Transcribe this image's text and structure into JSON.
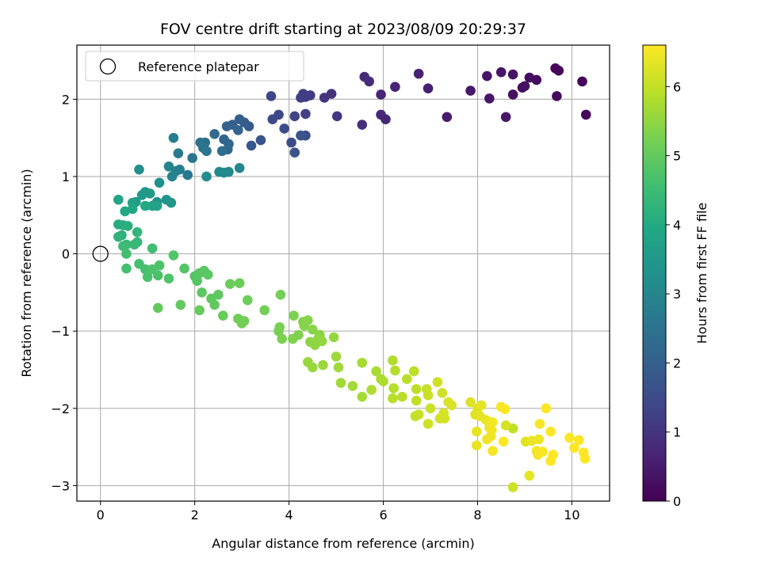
{
  "chart_data": {
    "type": "scatter",
    "title": "FOV centre drift starting at 2023/08/09 20:29:37",
    "xlabel": "Angular distance from reference (arcmin)",
    "ylabel": "Rotation from reference (arcmin)",
    "xlim": [
      -0.5,
      10.8
    ],
    "ylim": [
      -3.2,
      2.7
    ],
    "xticks": [
      0,
      2,
      4,
      6,
      8,
      10
    ],
    "yticks": [
      -3,
      -2,
      -1,
      0,
      1,
      2
    ],
    "grid": true,
    "legend": {
      "position": "top-left",
      "entries": [
        "Reference platepar"
      ]
    },
    "reference_point": {
      "x": 0,
      "y": 0
    },
    "colormap": "viridis",
    "colorbar": {
      "label": "Hours from first FF file",
      "range": [
        0,
        6.6
      ],
      "ticks": [
        0,
        1,
        2,
        3,
        4,
        5,
        6
      ]
    },
    "series": [
      {
        "values": [
          [
            9.65,
            2.4,
            0.08
          ],
          [
            9.72,
            2.37,
            0.1
          ],
          [
            10.22,
            2.23,
            0.12
          ],
          [
            10.3,
            1.8,
            0.14
          ],
          [
            9.68,
            2.04,
            0.16
          ],
          [
            9.25,
            2.25,
            0.2
          ],
          [
            9.1,
            2.28,
            0.22
          ],
          [
            8.95,
            2.15,
            0.25
          ],
          [
            9.0,
            2.17,
            0.27
          ],
          [
            8.75,
            2.06,
            0.3
          ],
          [
            8.75,
            2.32,
            0.32
          ],
          [
            8.5,
            2.35,
            0.35
          ],
          [
            8.2,
            2.3,
            0.38
          ],
          [
            8.25,
            2.01,
            0.4
          ],
          [
            8.6,
            1.77,
            0.42
          ],
          [
            7.85,
            2.11,
            0.46
          ],
          [
            7.35,
            1.77,
            0.5
          ],
          [
            6.95,
            2.14,
            0.55
          ],
          [
            6.75,
            2.33,
            0.6
          ],
          [
            6.25,
            2.16,
            0.65
          ],
          [
            5.95,
            2.06,
            0.7
          ],
          [
            6.05,
            1.74,
            0.72
          ],
          [
            5.95,
            1.8,
            0.75
          ],
          [
            5.6,
            2.29,
            0.8
          ],
          [
            5.7,
            2.23,
            0.85
          ],
          [
            5.55,
            1.67,
            0.9
          ],
          [
            4.9,
            2.07,
            0.95
          ],
          [
            4.75,
            2.02,
            1.0
          ],
          [
            5.02,
            1.78,
            1.05
          ],
          [
            4.45,
            2.05,
            1.1
          ],
          [
            4.3,
            2.07,
            1.15
          ],
          [
            4.35,
            2.03,
            1.18
          ],
          [
            4.25,
            2.02,
            1.2
          ],
          [
            4.35,
            1.81,
            1.25
          ],
          [
            4.12,
            1.78,
            1.3
          ],
          [
            3.62,
            2.04,
            1.35
          ],
          [
            3.78,
            1.8,
            1.4
          ],
          [
            3.65,
            1.74,
            1.45
          ],
          [
            3.9,
            1.62,
            1.5
          ],
          [
            4.05,
            1.44,
            1.55
          ],
          [
            4.35,
            1.53,
            1.6
          ],
          [
            4.25,
            1.53,
            1.65
          ],
          [
            4.12,
            1.31,
            1.7
          ],
          [
            3.4,
            1.47,
            1.75
          ],
          [
            3.2,
            1.4,
            1.8
          ],
          [
            3.15,
            1.65,
            1.85
          ],
          [
            3.05,
            1.7,
            1.9
          ],
          [
            2.95,
            1.74,
            1.95
          ],
          [
            2.8,
            1.67,
            2.0
          ],
          [
            2.68,
            1.65,
            2.05
          ],
          [
            2.92,
            1.6,
            2.1
          ],
          [
            2.62,
            1.48,
            2.15
          ],
          [
            2.72,
            1.42,
            2.2
          ],
          [
            2.7,
            1.35,
            2.25
          ],
          [
            2.42,
            1.55,
            2.3
          ],
          [
            2.58,
            1.33,
            2.35
          ],
          [
            2.22,
            1.44,
            2.4
          ],
          [
            2.18,
            1.37,
            2.45
          ],
          [
            2.12,
            1.44,
            2.5
          ],
          [
            2.25,
            1.33,
            2.55
          ],
          [
            1.95,
            1.24,
            2.6
          ],
          [
            1.85,
            1.02,
            2.65
          ],
          [
            1.65,
            1.3,
            2.7
          ],
          [
            1.55,
            1.5,
            2.75
          ],
          [
            1.68,
            1.09,
            2.8
          ],
          [
            1.6,
            1.07,
            2.85
          ],
          [
            1.52,
            1.0,
            2.9
          ],
          [
            1.45,
            1.13,
            2.95
          ],
          [
            2.95,
            1.11,
            3.0
          ],
          [
            2.72,
            1.06,
            3.05
          ],
          [
            2.62,
            1.05,
            3.1
          ],
          [
            2.52,
            1.06,
            3.15
          ],
          [
            2.25,
            1.0,
            3.2
          ],
          [
            0.82,
            1.09,
            3.25
          ],
          [
            1.25,
            0.92,
            3.3
          ],
          [
            1.2,
            0.67,
            3.35
          ],
          [
            1.4,
            0.7,
            3.4
          ],
          [
            1.5,
            0.66,
            3.45
          ],
          [
            0.95,
            0.8,
            3.5
          ],
          [
            0.88,
            0.76,
            3.55
          ],
          [
            1.05,
            0.78,
            3.6
          ],
          [
            0.75,
            0.67,
            3.65
          ],
          [
            0.68,
            0.66,
            3.7
          ],
          [
            1.1,
            0.62,
            3.75
          ],
          [
            1.2,
            0.62,
            3.8
          ],
          [
            0.38,
            0.7,
            3.85
          ],
          [
            0.68,
            0.58,
            3.9
          ],
          [
            0.52,
            0.55,
            3.95
          ],
          [
            0.95,
            0.62,
            4.0
          ],
          [
            0.38,
            0.38,
            4.05
          ],
          [
            0.48,
            0.37,
            4.1
          ],
          [
            0.58,
            0.36,
            4.15
          ],
          [
            0.45,
            0.24,
            4.2
          ],
          [
            0.38,
            0.22,
            4.25
          ],
          [
            0.78,
            0.28,
            4.3
          ],
          [
            0.78,
            0.15,
            4.35
          ],
          [
            0.72,
            0.12,
            4.4
          ],
          [
            0.55,
            0.12,
            4.45
          ],
          [
            0.48,
            0.1,
            4.5
          ],
          [
            1.1,
            0.07,
            4.55
          ],
          [
            0.55,
            0.0,
            4.6
          ],
          [
            0.55,
            -0.19,
            4.62
          ],
          [
            0.82,
            -0.13,
            4.64
          ],
          [
            0.95,
            -0.2,
            4.66
          ],
          [
            1.0,
            -0.3,
            4.68
          ],
          [
            1.22,
            -0.28,
            4.7
          ],
          [
            1.1,
            -0.2,
            4.72
          ],
          [
            1.25,
            -0.15,
            4.74
          ],
          [
            1.45,
            -0.32,
            4.76
          ],
          [
            1.55,
            -0.02,
            4.78
          ],
          [
            1.78,
            -0.19,
            4.8
          ],
          [
            2.0,
            -0.29,
            4.82
          ],
          [
            2.05,
            -0.35,
            4.84
          ],
          [
            2.1,
            -0.25,
            4.86
          ],
          [
            2.2,
            -0.22,
            4.88
          ],
          [
            2.28,
            -0.27,
            4.9
          ],
          [
            2.15,
            -0.5,
            4.92
          ],
          [
            2.35,
            -0.58,
            4.94
          ],
          [
            2.5,
            -0.53,
            4.96
          ],
          [
            2.42,
            -0.66,
            4.98
          ],
          [
            1.22,
            -0.7,
            5.0
          ],
          [
            1.7,
            -0.66,
            5.02
          ],
          [
            2.1,
            -0.73,
            5.04
          ],
          [
            2.6,
            -0.8,
            5.06
          ],
          [
            2.75,
            -0.39,
            5.08
          ],
          [
            2.95,
            -0.38,
            5.1
          ],
          [
            3.12,
            -0.6,
            5.12
          ],
          [
            2.92,
            -0.84,
            5.14
          ],
          [
            3.0,
            -0.9,
            5.16
          ],
          [
            3.05,
            -0.87,
            5.18
          ],
          [
            3.48,
            -0.73,
            5.2
          ],
          [
            3.82,
            -0.53,
            5.22
          ],
          [
            3.8,
            -0.95,
            5.24
          ],
          [
            3.78,
            -1.0,
            5.26
          ],
          [
            3.85,
            -1.1,
            5.28
          ],
          [
            4.1,
            -0.8,
            5.3
          ],
          [
            4.08,
            -1.1,
            5.32
          ],
          [
            4.2,
            -1.05,
            5.34
          ],
          [
            4.3,
            -0.88,
            5.36
          ],
          [
            4.32,
            -0.93,
            5.38
          ],
          [
            4.4,
            -0.86,
            5.4
          ],
          [
            4.5,
            -0.98,
            5.42
          ],
          [
            4.65,
            -1.05,
            5.44
          ],
          [
            4.45,
            -1.14,
            5.46
          ],
          [
            4.55,
            -1.18,
            5.48
          ],
          [
            4.62,
            -1.1,
            5.5
          ],
          [
            4.7,
            -1.13,
            5.52
          ],
          [
            4.95,
            -1.08,
            5.54
          ],
          [
            4.4,
            -1.4,
            5.56
          ],
          [
            4.5,
            -1.47,
            5.58
          ],
          [
            4.72,
            -1.44,
            5.6
          ],
          [
            5.0,
            -1.33,
            5.62
          ],
          [
            5.05,
            -1.47,
            5.64
          ],
          [
            5.1,
            -1.67,
            5.66
          ],
          [
            5.35,
            -1.71,
            5.68
          ],
          [
            5.55,
            -1.85,
            5.7
          ],
          [
            5.55,
            -1.41,
            5.72
          ],
          [
            5.85,
            -1.52,
            5.74
          ],
          [
            5.95,
            -1.62,
            5.76
          ],
          [
            6.0,
            -1.65,
            5.78
          ],
          [
            5.75,
            -1.76,
            5.8
          ],
          [
            6.2,
            -1.38,
            5.82
          ],
          [
            6.25,
            -1.51,
            5.84
          ],
          [
            6.22,
            -1.74,
            5.86
          ],
          [
            6.2,
            -1.87,
            5.88
          ],
          [
            6.4,
            -1.85,
            5.9
          ],
          [
            6.5,
            -1.62,
            5.92
          ],
          [
            6.65,
            -1.52,
            5.94
          ],
          [
            6.7,
            -1.75,
            5.96
          ],
          [
            6.7,
            -1.9,
            5.98
          ],
          [
            6.68,
            -2.1,
            6.0
          ],
          [
            6.75,
            -2.08,
            6.02
          ],
          [
            6.92,
            -1.75,
            6.04
          ],
          [
            6.95,
            -1.83,
            6.06
          ],
          [
            7.0,
            -2.0,
            6.08
          ],
          [
            6.95,
            -2.2,
            6.1
          ],
          [
            7.15,
            -1.66,
            6.12
          ],
          [
            7.25,
            -1.8,
            6.14
          ],
          [
            7.2,
            -2.13,
            6.16
          ],
          [
            7.3,
            -2.13,
            6.18
          ],
          [
            7.28,
            -2.06,
            6.2
          ],
          [
            7.45,
            -1.96,
            6.22
          ],
          [
            7.38,
            -1.92,
            6.24
          ],
          [
            7.85,
            -1.92,
            6.26
          ],
          [
            7.95,
            -2.08,
            6.28
          ],
          [
            8.0,
            -2.0,
            6.3
          ],
          [
            8.08,
            -1.96,
            6.32
          ],
          [
            8.05,
            -2.1,
            6.34
          ],
          [
            7.98,
            -2.3,
            6.36
          ],
          [
            7.98,
            -2.48,
            6.38
          ],
          [
            8.18,
            -2.15,
            6.4
          ],
          [
            8.25,
            -2.25,
            6.42
          ],
          [
            8.2,
            -2.4,
            6.44
          ],
          [
            8.28,
            -2.36,
            6.46
          ],
          [
            8.3,
            -2.28,
            6.48
          ],
          [
            8.32,
            -2.18,
            6.5
          ],
          [
            8.32,
            -2.55,
            6.52
          ],
          [
            8.5,
            -1.98,
            6.54
          ],
          [
            8.58,
            -2.01,
            6.56
          ],
          [
            8.55,
            -2.43,
            6.58
          ],
          [
            8.75,
            -2.26,
            6.0
          ],
          [
            8.75,
            -3.02,
            6.1
          ],
          [
            8.6,
            -2.22,
            6.2
          ],
          [
            9.02,
            -2.43,
            6.3
          ],
          [
            9.1,
            -2.87,
            6.35
          ],
          [
            9.15,
            -2.42,
            6.4
          ],
          [
            9.3,
            -2.4,
            6.45
          ],
          [
            9.25,
            -2.55,
            6.5
          ],
          [
            9.28,
            -2.6,
            6.52
          ],
          [
            9.32,
            -2.2,
            6.54
          ],
          [
            9.38,
            -2.56,
            6.56
          ],
          [
            9.45,
            -2.0,
            6.58
          ],
          [
            9.55,
            -2.3,
            6.6
          ],
          [
            9.6,
            -2.6,
            6.6
          ],
          [
            9.55,
            -2.68,
            6.6
          ],
          [
            9.95,
            -2.38,
            6.6
          ],
          [
            10.05,
            -2.51,
            6.6
          ],
          [
            10.15,
            -2.41,
            6.6
          ],
          [
            10.25,
            -2.57,
            6.6
          ],
          [
            10.28,
            -2.65,
            6.6
          ]
        ]
      }
    ]
  }
}
